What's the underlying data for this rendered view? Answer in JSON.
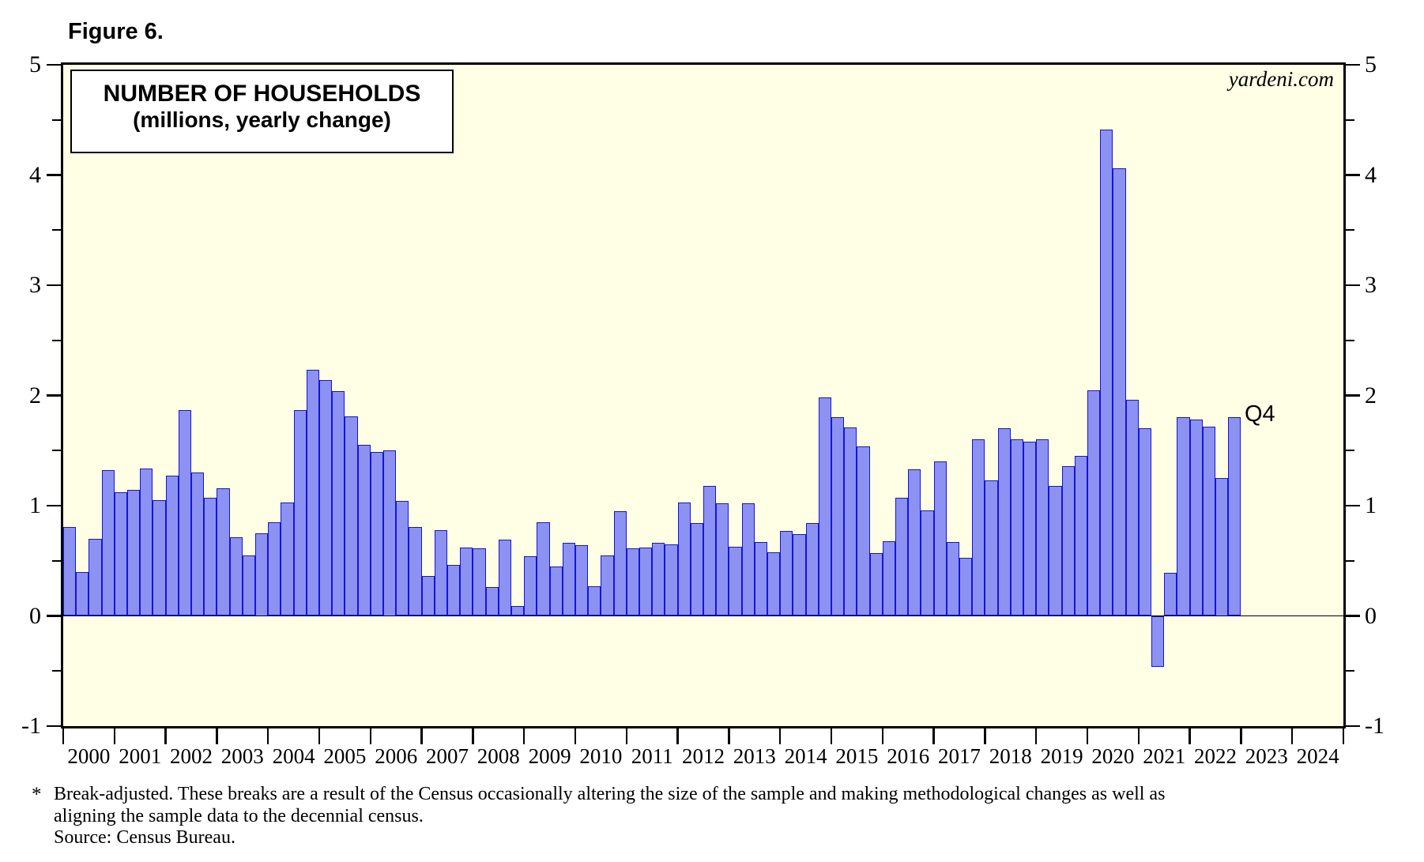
{
  "figure_label": "Figure 6.",
  "title_line1": "NUMBER OF HOUSEHOLDS",
  "title_line2": "(millions, yearly change)",
  "watermark": "yardeni.com",
  "annotation_q4": "Q4",
  "footnote": {
    "marker": "*",
    "line1": "Break-adjusted. These breaks are a result of the Census occasionally altering the size of the sample and making methodological changes as well as",
    "line2": "aligning the sample data to the decennial census.",
    "line3": "Source: Census Bureau."
  },
  "colors": {
    "plot_bg": "#FFFFE6",
    "bar_fill": "#8C92F2",
    "bar_border": "#1414DC",
    "axis": "#000000"
  },
  "chart_data": {
    "type": "bar",
    "title": "NUMBER OF HOUSEHOLDS (millions, yearly change)",
    "ylabel": "millions, yearly change",
    "ylim": [
      -1,
      5
    ],
    "y_major_ticks": [
      5,
      4,
      3,
      2,
      1,
      0,
      -1
    ],
    "y_minor_ticks": [
      4.5,
      3.5,
      2.5,
      1.5,
      0.5,
      -0.5
    ],
    "x_year_labels": [
      "2000",
      "2001",
      "2002",
      "2003",
      "2004",
      "2005",
      "2006",
      "2007",
      "2008",
      "2009",
      "2010",
      "2011",
      "2012",
      "2013",
      "2014",
      "2015",
      "2016",
      "2017",
      "2018",
      "2019",
      "2020",
      "2021",
      "2022",
      "2023",
      "2024"
    ],
    "grid": false,
    "legend": "none",
    "points": [
      {
        "label": "2000Q1",
        "value": 0.81
      },
      {
        "label": "2000Q2",
        "value": 0.4
      },
      {
        "label": "2000Q3",
        "value": 0.7
      },
      {
        "label": "2000Q4",
        "value": 1.32
      },
      {
        "label": "2001Q1",
        "value": 1.12
      },
      {
        "label": "2001Q2",
        "value": 1.14
      },
      {
        "label": "2001Q3",
        "value": 1.34
      },
      {
        "label": "2001Q4",
        "value": 1.05
      },
      {
        "label": "2002Q1",
        "value": 1.27
      },
      {
        "label": "2002Q2",
        "value": 1.87
      },
      {
        "label": "2002Q3",
        "value": 1.3
      },
      {
        "label": "2002Q4",
        "value": 1.07
      },
      {
        "label": "2003Q1",
        "value": 1.16
      },
      {
        "label": "2003Q2",
        "value": 0.71
      },
      {
        "label": "2003Q3",
        "value": 0.55
      },
      {
        "label": "2003Q4",
        "value": 0.75
      },
      {
        "label": "2004Q1",
        "value": 0.85
      },
      {
        "label": "2004Q2",
        "value": 1.03
      },
      {
        "label": "2004Q3",
        "value": 1.87
      },
      {
        "label": "2004Q4",
        "value": 2.23
      },
      {
        "label": "2005Q1",
        "value": 2.14
      },
      {
        "label": "2005Q2",
        "value": 2.04
      },
      {
        "label": "2005Q3",
        "value": 1.81
      },
      {
        "label": "2005Q4",
        "value": 1.55
      },
      {
        "label": "2006Q1",
        "value": 1.49
      },
      {
        "label": "2006Q2",
        "value": 1.5
      },
      {
        "label": "2006Q3",
        "value": 1.04
      },
      {
        "label": "2006Q4",
        "value": 0.81
      },
      {
        "label": "2007Q1",
        "value": 0.36
      },
      {
        "label": "2007Q2",
        "value": 0.78
      },
      {
        "label": "2007Q3",
        "value": 0.46
      },
      {
        "label": "2007Q4",
        "value": 0.62
      },
      {
        "label": "2008Q1",
        "value": 0.61
      },
      {
        "label": "2008Q2",
        "value": 0.26
      },
      {
        "label": "2008Q3",
        "value": 0.69
      },
      {
        "label": "2008Q4",
        "value": 0.09
      },
      {
        "label": "2009Q1",
        "value": 0.54
      },
      {
        "label": "2009Q2",
        "value": 0.85
      },
      {
        "label": "2009Q3",
        "value": 0.45
      },
      {
        "label": "2009Q4",
        "value": 0.66
      },
      {
        "label": "2010Q1",
        "value": 0.64
      },
      {
        "label": "2010Q2",
        "value": 0.27
      },
      {
        "label": "2010Q3",
        "value": 0.55
      },
      {
        "label": "2010Q4",
        "value": 0.95
      },
      {
        "label": "2011Q1",
        "value": 0.61
      },
      {
        "label": "2011Q2",
        "value": 0.62
      },
      {
        "label": "2011Q3",
        "value": 0.66
      },
      {
        "label": "2011Q4",
        "value": 0.65
      },
      {
        "label": "2012Q1",
        "value": 1.03
      },
      {
        "label": "2012Q2",
        "value": 0.84
      },
      {
        "label": "2012Q3",
        "value": 1.18
      },
      {
        "label": "2012Q4",
        "value": 1.02
      },
      {
        "label": "2013Q1",
        "value": 0.63
      },
      {
        "label": "2013Q2",
        "value": 1.02
      },
      {
        "label": "2013Q3",
        "value": 0.67
      },
      {
        "label": "2013Q4",
        "value": 0.58
      },
      {
        "label": "2014Q1",
        "value": 0.77
      },
      {
        "label": "2014Q2",
        "value": 0.74
      },
      {
        "label": "2014Q3",
        "value": 0.84
      },
      {
        "label": "2014Q4",
        "value": 1.98
      },
      {
        "label": "2015Q1",
        "value": 1.8
      },
      {
        "label": "2015Q2",
        "value": 1.71
      },
      {
        "label": "2015Q3",
        "value": 1.54
      },
      {
        "label": "2015Q4",
        "value": 0.57
      },
      {
        "label": "2016Q1",
        "value": 0.68
      },
      {
        "label": "2016Q2",
        "value": 1.07
      },
      {
        "label": "2016Q3",
        "value": 1.33
      },
      {
        "label": "2016Q4",
        "value": 0.96
      },
      {
        "label": "2017Q1",
        "value": 1.4
      },
      {
        "label": "2017Q2",
        "value": 0.67
      },
      {
        "label": "2017Q3",
        "value": 0.53
      },
      {
        "label": "2017Q4",
        "value": 1.6
      },
      {
        "label": "2018Q1",
        "value": 1.23
      },
      {
        "label": "2018Q2",
        "value": 1.7
      },
      {
        "label": "2018Q3",
        "value": 1.6
      },
      {
        "label": "2018Q4",
        "value": 1.58
      },
      {
        "label": "2019Q1",
        "value": 1.6
      },
      {
        "label": "2019Q2",
        "value": 1.18
      },
      {
        "label": "2019Q3",
        "value": 1.36
      },
      {
        "label": "2019Q4",
        "value": 1.45
      },
      {
        "label": "2020Q1",
        "value": 2.05
      },
      {
        "label": "2020Q2",
        "value": 4.41
      },
      {
        "label": "2020Q3",
        "value": 4.06
      },
      {
        "label": "2020Q4",
        "value": 1.96
      },
      {
        "label": "2021Q1",
        "value": 1.7
      },
      {
        "label": "2021Q2",
        "value": -0.46
      },
      {
        "label": "2021Q3",
        "value": 0.39
      },
      {
        "label": "2021Q4",
        "value": 1.8
      },
      {
        "label": "2022Q1",
        "value": 1.78
      },
      {
        "label": "2022Q2",
        "value": 1.72
      },
      {
        "label": "2022Q3",
        "value": 1.25
      },
      {
        "label": "2022Q4",
        "value": 1.8
      }
    ]
  }
}
